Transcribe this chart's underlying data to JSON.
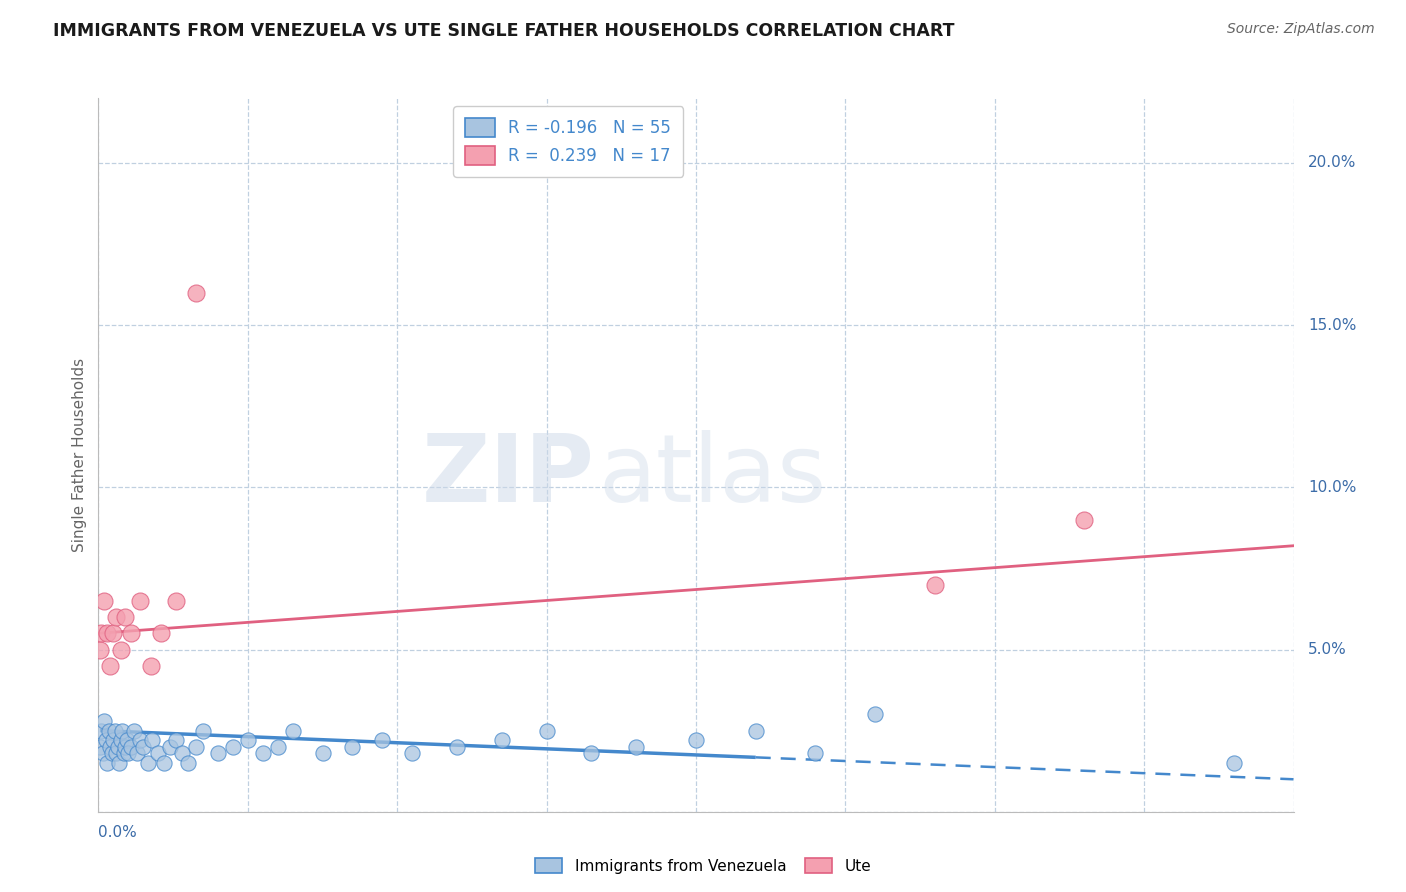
{
  "title": "IMMIGRANTS FROM VENEZUELA VS UTE SINGLE FATHER HOUSEHOLDS CORRELATION CHART",
  "source_text": "Source: ZipAtlas.com",
  "ylabel": "Single Father Households",
  "legend_label1": "Immigrants from Venezuela",
  "legend_label2": "Ute",
  "r1": -0.196,
  "n1": 55,
  "r2": 0.239,
  "n2": 17,
  "color1": "#a8c4e0",
  "color2": "#f4a0b0",
  "line_color1": "#4488cc",
  "line_color2": "#e06080",
  "watermark_zip": "ZIP",
  "watermark_atlas": "atlas",
  "xlim": [
    0.0,
    0.8
  ],
  "ylim": [
    0.0,
    0.22
  ],
  "yticks": [
    0.0,
    0.05,
    0.1,
    0.15,
    0.2
  ],
  "ytick_labels": [
    "",
    "5.0%",
    "10.0%",
    "15.0%",
    "20.0%"
  ],
  "xticks": [
    0.0,
    0.1,
    0.2,
    0.3,
    0.4,
    0.5,
    0.6,
    0.7,
    0.8
  ],
  "blue_dots_x": [
    0.001,
    0.002,
    0.003,
    0.004,
    0.005,
    0.006,
    0.007,
    0.008,
    0.009,
    0.01,
    0.011,
    0.012,
    0.013,
    0.014,
    0.015,
    0.016,
    0.017,
    0.018,
    0.019,
    0.02,
    0.022,
    0.024,
    0.026,
    0.028,
    0.03,
    0.033,
    0.036,
    0.04,
    0.044,
    0.048,
    0.052,
    0.056,
    0.06,
    0.065,
    0.07,
    0.08,
    0.09,
    0.1,
    0.11,
    0.12,
    0.13,
    0.15,
    0.17,
    0.19,
    0.21,
    0.24,
    0.27,
    0.3,
    0.33,
    0.36,
    0.4,
    0.44,
    0.48,
    0.52,
    0.76
  ],
  "blue_dots_y": [
    0.02,
    0.025,
    0.018,
    0.028,
    0.022,
    0.015,
    0.025,
    0.02,
    0.018,
    0.022,
    0.025,
    0.018,
    0.02,
    0.015,
    0.022,
    0.025,
    0.018,
    0.02,
    0.022,
    0.018,
    0.02,
    0.025,
    0.018,
    0.022,
    0.02,
    0.015,
    0.022,
    0.018,
    0.015,
    0.02,
    0.022,
    0.018,
    0.015,
    0.02,
    0.025,
    0.018,
    0.02,
    0.022,
    0.018,
    0.02,
    0.025,
    0.018,
    0.02,
    0.022,
    0.018,
    0.02,
    0.022,
    0.025,
    0.018,
    0.02,
    0.022,
    0.025,
    0.018,
    0.03,
    0.015
  ],
  "pink_dots_x": [
    0.001,
    0.002,
    0.004,
    0.006,
    0.008,
    0.01,
    0.012,
    0.015,
    0.018,
    0.022,
    0.028,
    0.035,
    0.042,
    0.052,
    0.065,
    0.56,
    0.66
  ],
  "pink_dots_y": [
    0.05,
    0.055,
    0.065,
    0.055,
    0.045,
    0.055,
    0.06,
    0.05,
    0.06,
    0.055,
    0.065,
    0.045,
    0.055,
    0.065,
    0.16,
    0.07,
    0.09
  ],
  "blue_line_start_x": 0.001,
  "blue_line_end_solid_x": 0.44,
  "blue_line_end_x": 0.8,
  "blue_line_start_y": 0.025,
  "blue_line_end_y": 0.01,
  "pink_line_start_x": 0.0,
  "pink_line_end_x": 0.8,
  "pink_line_start_y": 0.055,
  "pink_line_end_y": 0.082,
  "background_color": "#ffffff",
  "grid_color": "#c0d0e0",
  "title_color": "#1a1a1a",
  "tick_color": "#3c6ca8",
  "source_color": "#666666"
}
